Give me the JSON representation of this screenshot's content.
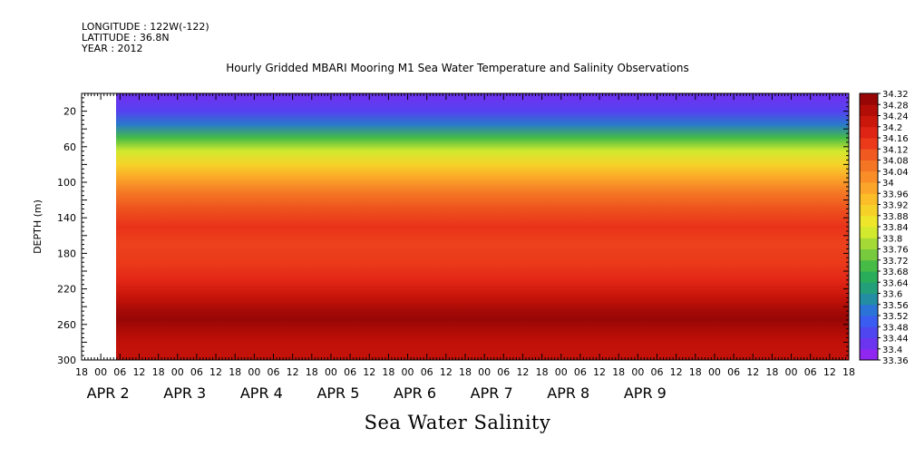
{
  "header": {
    "line1": "LONGITUDE : 122W(-122)",
    "line2": "LATITUDE : 36.8N",
    "line3": "YEAR : 2012"
  },
  "footer_title": "Sea Water Salinity",
  "chart_data": {
    "type": "heatmap",
    "title": "Hourly Gridded MBARI Mooring M1 Sea Water Temperature and Salinity Observations",
    "ylabel": "DEPTH (m)",
    "xlabel": "",
    "y_inverted": true,
    "ylim": [
      0,
      300
    ],
    "y_ticks": [
      20,
      60,
      100,
      140,
      180,
      220,
      260,
      300
    ],
    "x_hour_ticks": [
      "18",
      "00",
      "06",
      "12",
      "18",
      "00",
      "06",
      "12",
      "18",
      "00",
      "06",
      "12",
      "18",
      "00",
      "06",
      "12",
      "18",
      "00",
      "06",
      "12",
      "18",
      "00",
      "06",
      "12",
      "18",
      "00",
      "06",
      "12",
      "18",
      "00",
      "06",
      "12",
      "18",
      "00",
      "06",
      "12",
      "18",
      "00",
      "06",
      "12",
      "18"
    ],
    "x_day_labels": [
      "APR 2",
      "APR 3",
      "APR 4",
      "APR 5",
      "APR 6",
      "APR 7",
      "APR 8",
      "APR 9"
    ],
    "data_start": "APR 2 02:00",
    "data_end": "APR 9 18:00",
    "colorbar_levels": [
      "33.36",
      "33.4",
      "33.44",
      "33.48",
      "33.52",
      "33.56",
      "33.6",
      "33.64",
      "33.68",
      "33.72",
      "33.76",
      "33.8",
      "33.84",
      "33.88",
      "33.92",
      "33.96",
      "34",
      "34.04",
      "34.08",
      "34.12",
      "34.16",
      "34.2",
      "34.24",
      "34.28",
      "34.32"
    ],
    "depth_profile": {
      "depths": [
        5,
        20,
        35,
        50,
        65,
        80,
        95,
        110,
        130,
        150,
        170,
        190,
        210,
        230,
        245,
        255,
        265,
        280,
        300
      ],
      "salinity": [
        33.42,
        33.45,
        33.55,
        33.7,
        33.82,
        33.9,
        33.98,
        34.05,
        34.11,
        34.15,
        34.13,
        34.14,
        34.17,
        34.23,
        34.28,
        34.3,
        34.27,
        34.24,
        34.23
      ]
    }
  }
}
